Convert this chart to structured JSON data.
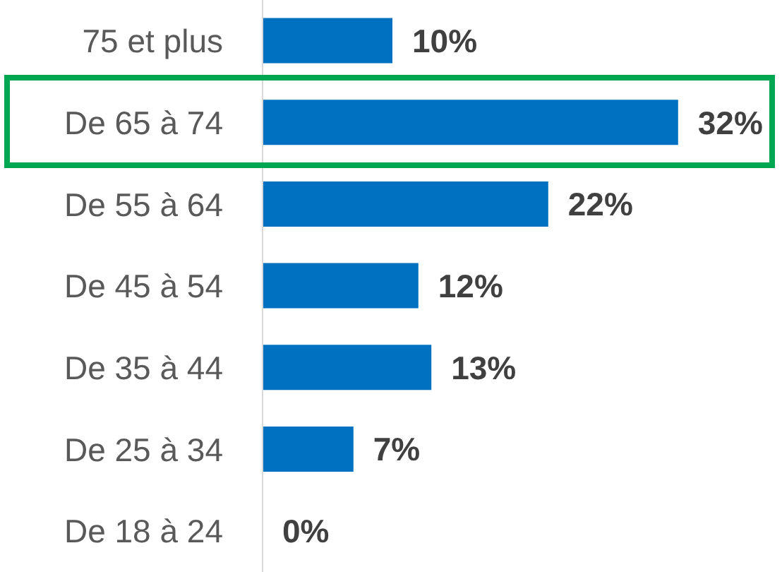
{
  "chart_data": {
    "type": "bar",
    "orientation": "horizontal",
    "categories": [
      "75 et plus",
      "De 65 à 74",
      "De 55 à 64",
      "De 45 à 54",
      "De 35 à 44",
      "De 25 à 34",
      "De 18 à 24"
    ],
    "values": [
      10,
      32,
      22,
      12,
      13,
      7,
      0
    ],
    "value_labels": [
      "10%",
      "32%",
      "22%",
      "12%",
      "13%",
      "7%",
      "0%"
    ],
    "color": "#0070c0"
  }
}
